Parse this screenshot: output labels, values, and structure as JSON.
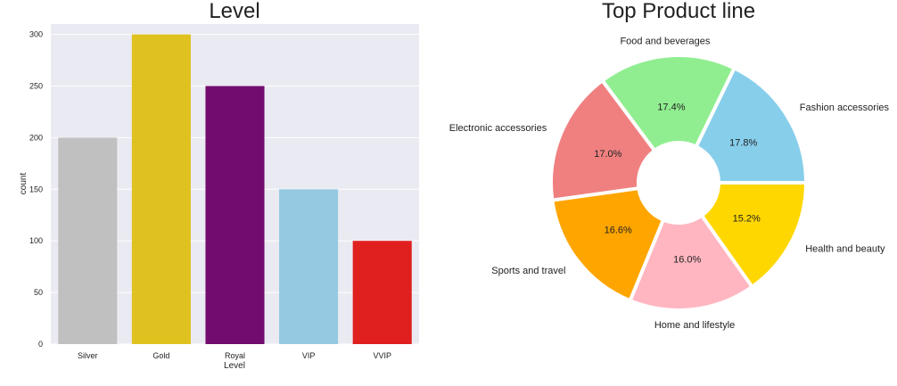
{
  "chart_data": [
    {
      "type": "bar",
      "title": "Level",
      "xlabel": "Level",
      "ylabel": "count",
      "categories": [
        "Silver",
        "Gold",
        "Royal",
        "VIP",
        "VVIP"
      ],
      "values": [
        200,
        300,
        250,
        150,
        100
      ],
      "colors": [
        "#c0c0c0",
        "#dfc21f",
        "#720c6e",
        "#94c9e1",
        "#e01f1f"
      ],
      "ylim": [
        0,
        310
      ],
      "yticks": [
        0,
        50,
        100,
        150,
        200,
        250,
        300
      ],
      "grid": true,
      "background": "#eaeaf2"
    },
    {
      "type": "pie",
      "title": "Top Product line",
      "donut": true,
      "labels": [
        "Fashion accessories",
        "Food and beverages",
        "Electronic accessories",
        "Sports and travel",
        "Home and lifestyle",
        "Health and beauty"
      ],
      "values": [
        17.8,
        17.4,
        17.0,
        16.6,
        16.0,
        15.2
      ],
      "value_labels": [
        "17.8%",
        "17.4%",
        "17.0%",
        "16.6%",
        "16.0%",
        "15.2%"
      ],
      "colors": [
        "#87ceeb",
        "#90ee90",
        "#f08080",
        "#ffa500",
        "#ffb6c1",
        "#ffd700"
      ]
    }
  ]
}
